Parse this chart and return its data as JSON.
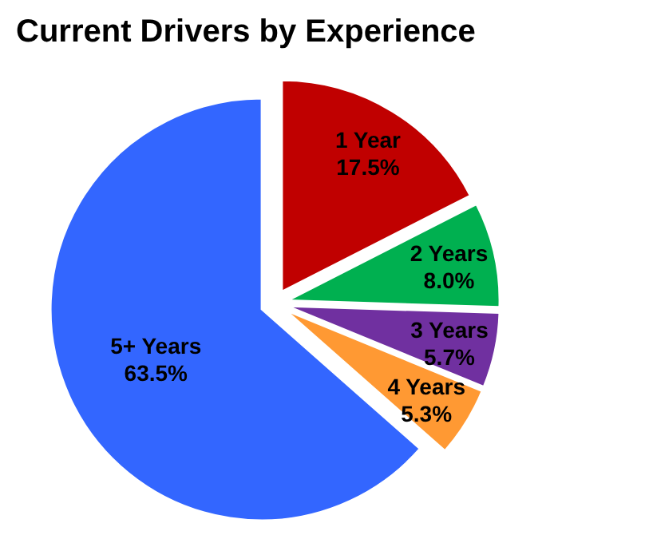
{
  "chart_data": {
    "type": "pie",
    "title": "Current Drivers by Experience",
    "categories": [
      "1 Year",
      "2 Years",
      "3 Years",
      "4 Years",
      "5+ Years"
    ],
    "values": [
      17.5,
      8.0,
      5.7,
      5.3,
      63.5
    ],
    "colors": [
      "#c00000",
      "#00b050",
      "#7030a0",
      "#ff9933",
      "#3366ff"
    ],
    "value_labels": [
      "17.5%",
      "8.0%",
      "5.7%",
      "5.3%",
      "63.5%"
    ]
  }
}
